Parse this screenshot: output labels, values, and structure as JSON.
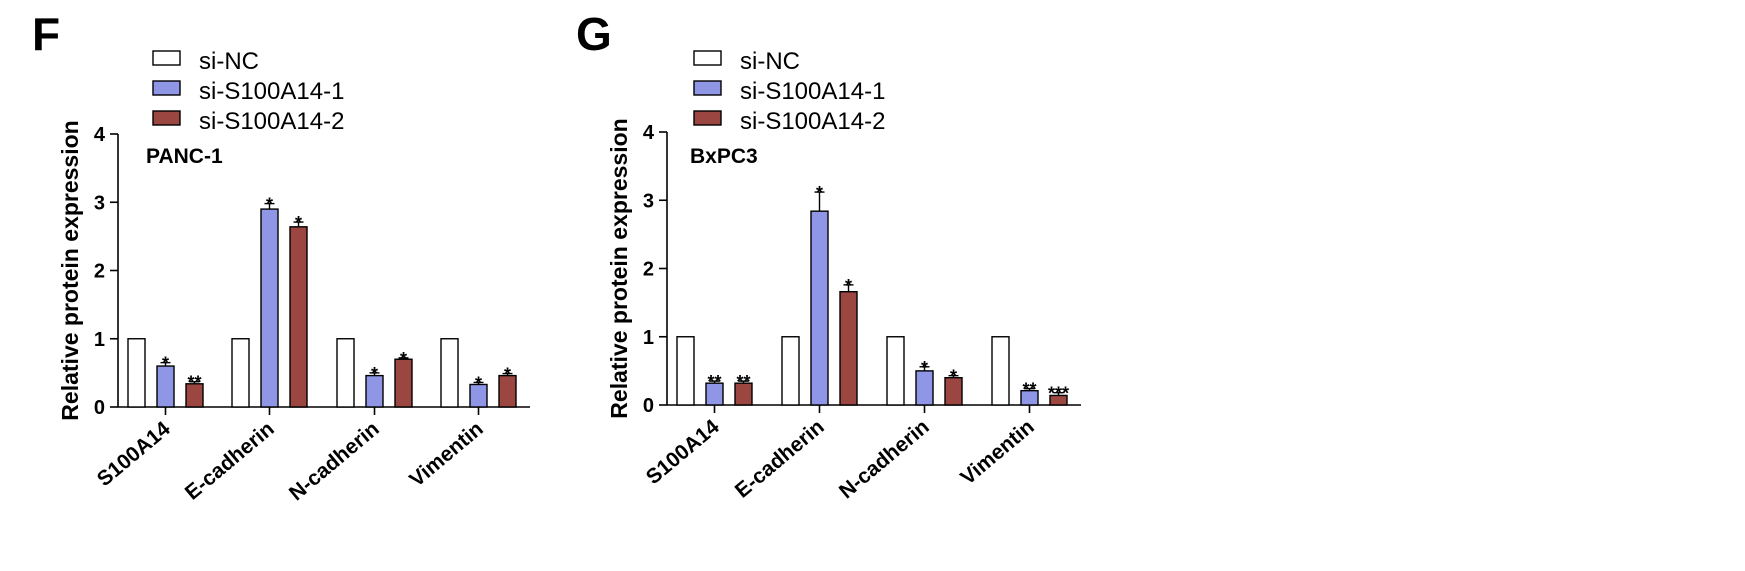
{
  "chart_data": [
    {
      "panel": "F",
      "type": "bar",
      "title": "PANC-1",
      "ylabel": "Relative protein expression",
      "xlabel": "",
      "ylim": [
        0,
        4
      ],
      "yticks": [
        0,
        1,
        2,
        3,
        4
      ],
      "categories": [
        "S100A14",
        "E-cadherin",
        "N-cadherin",
        "Vimentin"
      ],
      "series": [
        {
          "name": "si-NC",
          "color": "#ffffff",
          "values": [
            1.0,
            1.0,
            1.0,
            1.0
          ],
          "errors": [
            0,
            0,
            0,
            0
          ],
          "sig": [
            "",
            "",
            "",
            ""
          ]
        },
        {
          "name": "si-S100A14-1",
          "color": "#8f96e6",
          "values": [
            0.6,
            2.9,
            0.46,
            0.33
          ],
          "errors": [
            0.05,
            0.08,
            0.04,
            0.03
          ],
          "sig": [
            "*",
            "*",
            "*",
            "*"
          ]
        },
        {
          "name": "si-S100A14-2",
          "color": "#9b4640",
          "values": [
            0.34,
            2.64,
            0.7,
            0.46
          ],
          "errors": [
            0.03,
            0.07,
            0.02,
            0.03
          ],
          "sig": [
            "**",
            "*",
            "*",
            "*"
          ]
        }
      ]
    },
    {
      "panel": "G",
      "type": "bar",
      "title": "BxPC3",
      "ylabel": "Relative protein expression",
      "xlabel": "",
      "ylim": [
        0,
        4
      ],
      "yticks": [
        0,
        1,
        2,
        3,
        4
      ],
      "categories": [
        "S100A14",
        "E-cadherin",
        "N-cadherin",
        "Vimentin"
      ],
      "series": [
        {
          "name": "si-NC",
          "color": "#ffffff",
          "values": [
            1.0,
            1.0,
            1.0,
            1.0
          ],
          "errors": [
            0,
            0,
            0,
            0
          ],
          "sig": [
            "",
            "",
            "",
            ""
          ]
        },
        {
          "name": "si-S100A14-1",
          "color": "#8f96e6",
          "values": [
            0.32,
            2.84,
            0.5,
            0.21
          ],
          "errors": [
            0.03,
            0.28,
            0.06,
            0.03
          ],
          "sig": [
            "**",
            "*",
            "*",
            "**"
          ]
        },
        {
          "name": "si-S100A14-2",
          "color": "#9b4640",
          "values": [
            0.32,
            1.66,
            0.4,
            0.14
          ],
          "errors": [
            0.03,
            0.1,
            0.03,
            0.04
          ],
          "sig": [
            "**",
            "*",
            "*",
            "***"
          ]
        }
      ]
    }
  ]
}
